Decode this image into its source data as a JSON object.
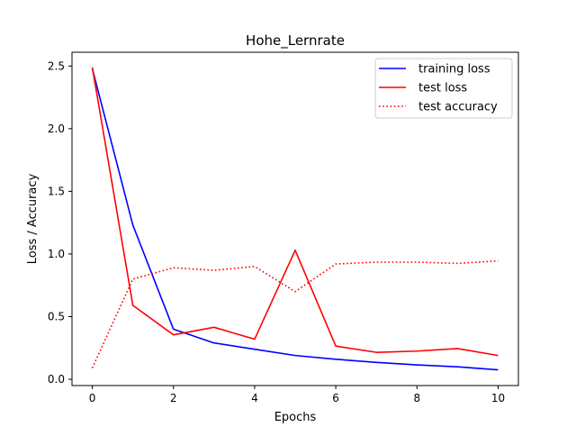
{
  "chart_data": {
    "type": "line",
    "title": "Hohe_Lernrate",
    "xlabel": "Epochs",
    "ylabel": "Loss / Accuracy",
    "xlim": [
      -0.5,
      10.5
    ],
    "ylim": [
      -0.05,
      2.61
    ],
    "xticks": [
      0,
      2,
      4,
      6,
      8,
      10
    ],
    "yticks": [
      0.0,
      0.5,
      1.0,
      1.5,
      2.0,
      2.5
    ],
    "xtick_labels": [
      "0",
      "2",
      "4",
      "6",
      "8",
      "10"
    ],
    "ytick_labels": [
      "0.0",
      "0.5",
      "1.0",
      "1.5",
      "2.0",
      "2.5"
    ],
    "grid": false,
    "legend_position": "top-right",
    "x": [
      0,
      1,
      2,
      3,
      4,
      5,
      6,
      7,
      8,
      9,
      10
    ],
    "series": [
      {
        "name": "training loss",
        "color": "#0000ff",
        "style": "solid",
        "values": [
          2.48,
          1.23,
          0.4,
          0.29,
          0.24,
          0.19,
          0.16,
          0.135,
          0.115,
          0.1,
          0.075
        ]
      },
      {
        "name": "test loss",
        "color": "#ff0000",
        "style": "solid",
        "values": [
          2.49,
          0.59,
          0.355,
          0.415,
          0.32,
          1.03,
          0.265,
          0.215,
          0.225,
          0.245,
          0.19
        ]
      },
      {
        "name": "test accuracy",
        "color": "#ff0000",
        "style": "dotted",
        "values": [
          0.09,
          0.8,
          0.89,
          0.87,
          0.9,
          0.7,
          0.92,
          0.935,
          0.935,
          0.925,
          0.945
        ]
      }
    ]
  }
}
